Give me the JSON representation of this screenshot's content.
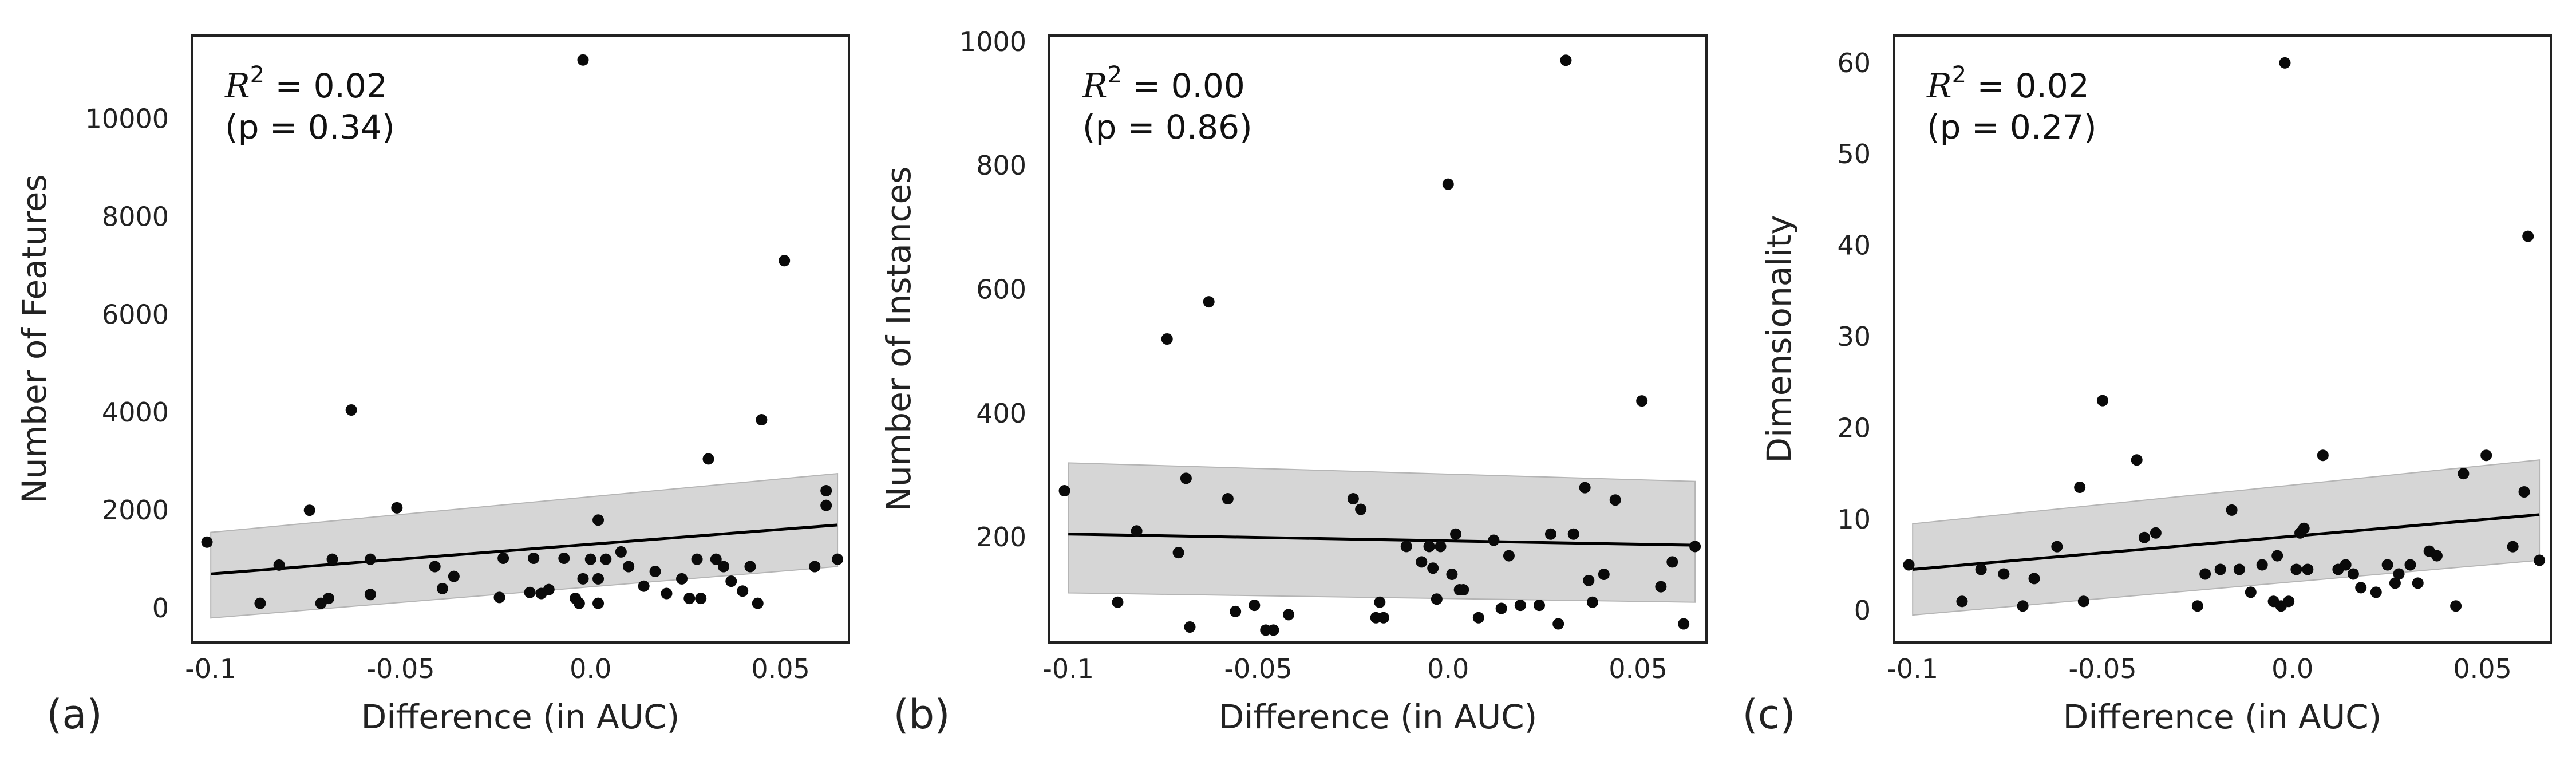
{
  "chart_data": [
    {
      "type": "scatter",
      "panel_label": "(a)",
      "xlabel": "Difference (in AUC)",
      "ylabel": "Number of Features",
      "xlim": [
        -0.105,
        0.068
      ],
      "ylim": [
        -700,
        11700
      ],
      "xticks": [
        -0.1,
        -0.05,
        0.0,
        0.05
      ],
      "xtick_labels": [
        "-0.1",
        "-0.05",
        "0.0",
        "0.05"
      ],
      "yticks": [
        0,
        2000,
        4000,
        6000,
        8000,
        10000
      ],
      "ytick_labels": [
        "0",
        "2000",
        "4000",
        "6000",
        "8000",
        "10000"
      ],
      "annotation_r2": "R² = 0.02",
      "annotation_p": "(p = 0.34)",
      "grid": false,
      "regression": {
        "x": [
          -0.1,
          0.065
        ],
        "y": [
          700,
          1700
        ]
      },
      "ci_band": {
        "x": [
          -0.1,
          0.065
        ],
        "upper": [
          1550,
          2750
        ],
        "lower": [
          -200,
          850
        ]
      },
      "points": [
        [
          -0.101,
          1350
        ],
        [
          -0.087,
          100
        ],
        [
          -0.082,
          880
        ],
        [
          -0.074,
          2000
        ],
        [
          -0.071,
          100
        ],
        [
          -0.069,
          200
        ],
        [
          -0.068,
          1000
        ],
        [
          -0.063,
          4050
        ],
        [
          -0.058,
          1000
        ],
        [
          -0.058,
          280
        ],
        [
          -0.051,
          2050
        ],
        [
          -0.041,
          850
        ],
        [
          -0.039,
          400
        ],
        [
          -0.036,
          650
        ],
        [
          -0.024,
          220
        ],
        [
          -0.023,
          1020
        ],
        [
          -0.016,
          320
        ],
        [
          -0.015,
          1020
        ],
        [
          -0.013,
          300
        ],
        [
          -0.011,
          380
        ],
        [
          -0.007,
          1020
        ],
        [
          -0.004,
          200
        ],
        [
          -0.003,
          100
        ],
        [
          -0.002,
          11200
        ],
        [
          -0.002,
          600
        ],
        [
          0.0,
          1000
        ],
        [
          0.002,
          100
        ],
        [
          0.002,
          600
        ],
        [
          0.002,
          1800
        ],
        [
          0.004,
          1000
        ],
        [
          0.008,
          1150
        ],
        [
          0.01,
          850
        ],
        [
          0.014,
          450
        ],
        [
          0.017,
          750
        ],
        [
          0.02,
          300
        ],
        [
          0.024,
          600
        ],
        [
          0.026,
          200
        ],
        [
          0.028,
          1000
        ],
        [
          0.029,
          200
        ],
        [
          0.031,
          3050
        ],
        [
          0.033,
          1000
        ],
        [
          0.035,
          850
        ],
        [
          0.037,
          550
        ],
        [
          0.04,
          350
        ],
        [
          0.042,
          850
        ],
        [
          0.044,
          100
        ],
        [
          0.045,
          3850
        ],
        [
          0.051,
          7100
        ],
        [
          0.059,
          850
        ],
        [
          0.062,
          2400
        ],
        [
          0.062,
          2100
        ],
        [
          0.065,
          1000
        ]
      ]
    },
    {
      "type": "scatter",
      "panel_label": "(b)",
      "xlabel": "Difference (in AUC)",
      "ylabel": "Number of Instances",
      "xlim": [
        -0.105,
        0.068
      ],
      "ylim": [
        30,
        1010
      ],
      "xticks": [
        -0.1,
        -0.05,
        0.0,
        0.05
      ],
      "xtick_labels": [
        "-0.1",
        "-0.05",
        "0.0",
        "0.05"
      ],
      "yticks": [
        200,
        400,
        600,
        800,
        1000
      ],
      "ytick_labels": [
        "200",
        "400",
        "600",
        "800",
        "1000"
      ],
      "annotation_r2": "R² = 0.00",
      "annotation_p": "(p = 0.86)",
      "grid": false,
      "regression": {
        "x": [
          -0.1,
          0.065
        ],
        "y": [
          205,
          187
        ]
      },
      "ci_band": {
        "x": [
          -0.1,
          0.065
        ],
        "upper": [
          320,
          290
        ],
        "lower": [
          110,
          95
        ]
      },
      "points": [
        [
          -0.101,
          275
        ],
        [
          -0.087,
          95
        ],
        [
          -0.082,
          210
        ],
        [
          -0.074,
          520
        ],
        [
          -0.071,
          175
        ],
        [
          -0.069,
          295
        ],
        [
          -0.068,
          55
        ],
        [
          -0.063,
          580
        ],
        [
          -0.058,
          262
        ],
        [
          -0.056,
          80
        ],
        [
          -0.051,
          90
        ],
        [
          -0.048,
          50
        ],
        [
          -0.046,
          50
        ],
        [
          -0.042,
          75
        ],
        [
          -0.025,
          262
        ],
        [
          -0.023,
          245
        ],
        [
          -0.019,
          70
        ],
        [
          -0.018,
          95
        ],
        [
          -0.017,
          70
        ],
        [
          -0.011,
          185
        ],
        [
          -0.007,
          160
        ],
        [
          -0.005,
          185
        ],
        [
          -0.004,
          150
        ],
        [
          -0.003,
          100
        ],
        [
          -0.002,
          185
        ],
        [
          0.0,
          770
        ],
        [
          0.001,
          140
        ],
        [
          0.002,
          205
        ],
        [
          0.003,
          115
        ],
        [
          0.004,
          115
        ],
        [
          0.008,
          70
        ],
        [
          0.012,
          195
        ],
        [
          0.014,
          85
        ],
        [
          0.016,
          170
        ],
        [
          0.019,
          90
        ],
        [
          0.024,
          90
        ],
        [
          0.027,
          205
        ],
        [
          0.029,
          60
        ],
        [
          0.031,
          970
        ],
        [
          0.033,
          205
        ],
        [
          0.036,
          280
        ],
        [
          0.037,
          130
        ],
        [
          0.038,
          95
        ],
        [
          0.041,
          140
        ],
        [
          0.044,
          260
        ],
        [
          0.051,
          420
        ],
        [
          0.056,
          120
        ],
        [
          0.059,
          160
        ],
        [
          0.062,
          60
        ],
        [
          0.065,
          185
        ]
      ]
    },
    {
      "type": "scatter",
      "panel_label": "(c)",
      "xlabel": "Difference (in AUC)",
      "ylabel": "Dimensionality",
      "xlim": [
        -0.105,
        0.068
      ],
      "ylim": [
        -3.5,
        63
      ],
      "xticks": [
        -0.1,
        -0.05,
        0.0,
        0.05
      ],
      "xtick_labels": [
        "-0.1",
        "-0.05",
        "0.0",
        "0.05"
      ],
      "yticks": [
        0,
        10,
        20,
        30,
        40,
        50,
        60
      ],
      "ytick_labels": [
        "0",
        "10",
        "20",
        "30",
        "40",
        "50",
        "60"
      ],
      "annotation_r2": "R² = 0.02",
      "annotation_p": "(p = 0.27)",
      "grid": false,
      "regression": {
        "x": [
          -0.1,
          0.065
        ],
        "y": [
          4.5,
          10.5
        ]
      },
      "ci_band": {
        "x": [
          -0.1,
          0.065
        ],
        "upper": [
          9.5,
          16.5
        ],
        "lower": [
          -0.5,
          5.5
        ]
      },
      "points": [
        [
          -0.101,
          5
        ],
        [
          -0.087,
          1
        ],
        [
          -0.082,
          4.5
        ],
        [
          -0.076,
          4
        ],
        [
          -0.071,
          0.5
        ],
        [
          -0.068,
          3.5
        ],
        [
          -0.062,
          7
        ],
        [
          -0.056,
          13.5
        ],
        [
          -0.055,
          1
        ],
        [
          -0.05,
          23
        ],
        [
          -0.041,
          16.5
        ],
        [
          -0.039,
          8
        ],
        [
          -0.036,
          8.5
        ],
        [
          -0.025,
          0.5
        ],
        [
          -0.023,
          4
        ],
        [
          -0.019,
          4.5
        ],
        [
          -0.016,
          11
        ],
        [
          -0.014,
          4.5
        ],
        [
          -0.011,
          2
        ],
        [
          -0.008,
          5
        ],
        [
          -0.005,
          1
        ],
        [
          -0.004,
          6
        ],
        [
          -0.003,
          0.5
        ],
        [
          -0.002,
          60
        ],
        [
          -0.001,
          1
        ],
        [
          0.001,
          4.5
        ],
        [
          0.002,
          8.5
        ],
        [
          0.003,
          9
        ],
        [
          0.004,
          4.5
        ],
        [
          0.008,
          17
        ],
        [
          0.012,
          4.5
        ],
        [
          0.014,
          5
        ],
        [
          0.016,
          4
        ],
        [
          0.018,
          2.5
        ],
        [
          0.022,
          2
        ],
        [
          0.025,
          5
        ],
        [
          0.027,
          3
        ],
        [
          0.028,
          4
        ],
        [
          0.031,
          5
        ],
        [
          0.033,
          3
        ],
        [
          0.036,
          6.5
        ],
        [
          0.038,
          6
        ],
        [
          0.043,
          0.5
        ],
        [
          0.045,
          15
        ],
        [
          0.051,
          17
        ],
        [
          0.058,
          7
        ],
        [
          0.061,
          13
        ],
        [
          0.062,
          41
        ],
        [
          0.065,
          5.5
        ]
      ]
    }
  ]
}
